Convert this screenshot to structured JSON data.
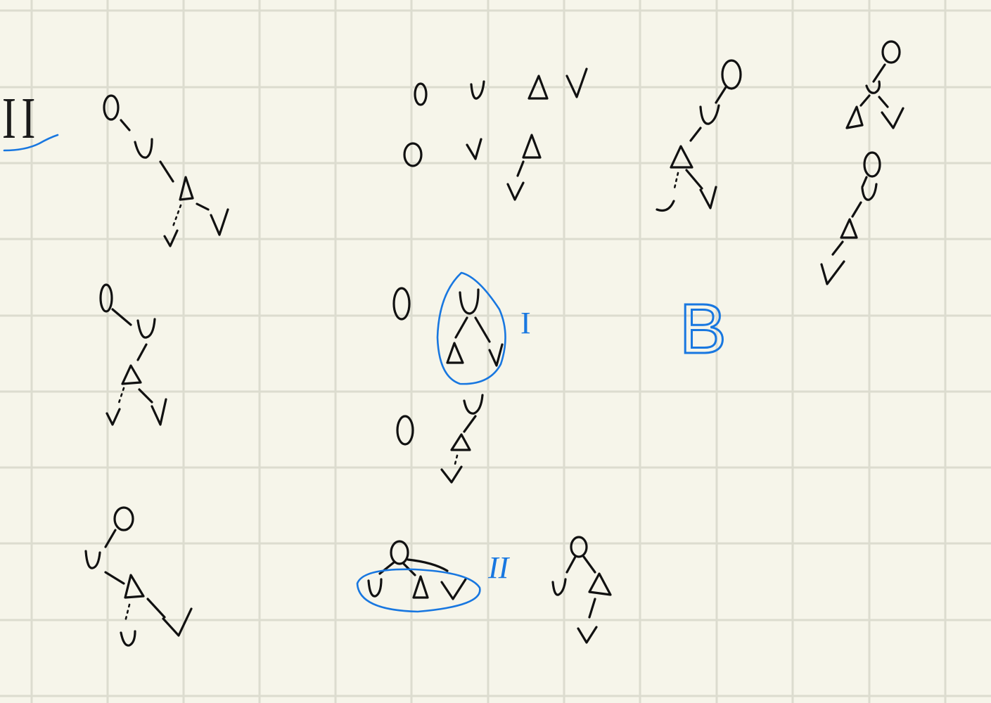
{
  "page": {
    "background": "#f6f5ea",
    "grid_color": "#dcdccf",
    "ink_color": "#111111",
    "annotation_color": "#1877e0"
  },
  "annotations": {
    "section_label": "II",
    "label_I": "I",
    "label_II": "II",
    "label_B": "B"
  },
  "symbols": [
    "O",
    "U",
    "Δ",
    "V"
  ]
}
